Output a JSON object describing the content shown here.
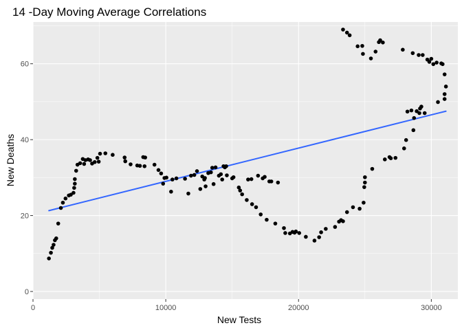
{
  "chart_data": {
    "type": "scatter",
    "title": "14 -Day Moving Average Correlations",
    "xlabel": "New Tests",
    "ylabel": "New Deaths",
    "xlim": [
      0,
      32000
    ],
    "ylim": [
      -2,
      71
    ],
    "x_ticks": [
      0,
      10000,
      20000,
      30000
    ],
    "x_tick_labels": [
      "0",
      "10000",
      "20000",
      "30000"
    ],
    "y_ticks": [
      0,
      20,
      40,
      60
    ],
    "y_tick_labels": [
      "0",
      "20",
      "40",
      "60"
    ],
    "grid": true,
    "colors": {
      "panel_background": "#ebebeb",
      "grid_major": "#ffffff",
      "points": "#000000",
      "trend_line": "#3366ff"
    },
    "trend_line": {
      "method": "lm",
      "start": [
        1200,
        21.3
      ],
      "end": [
        31100,
        47.5
      ]
    },
    "points": [
      [
        1200,
        8.7
      ],
      [
        1350,
        10.2
      ],
      [
        1450,
        11.5
      ],
      [
        1550,
        12.3
      ],
      [
        1650,
        13.5
      ],
      [
        1750,
        14.0
      ],
      [
        1900,
        17.9
      ],
      [
        2100,
        22.0
      ],
      [
        2250,
        23.4
      ],
      [
        2450,
        24.5
      ],
      [
        2700,
        25.3
      ],
      [
        2850,
        25.5
      ],
      [
        3050,
        26.0
      ],
      [
        3100,
        27.3
      ],
      [
        3150,
        28.4
      ],
      [
        3150,
        29.6
      ],
      [
        3250,
        31.8
      ],
      [
        3350,
        33.4
      ],
      [
        3550,
        33.8
      ],
      [
        3750,
        34.9
      ],
      [
        3850,
        33.6
      ],
      [
        3950,
        34.6
      ],
      [
        4150,
        34.8
      ],
      [
        4300,
        34.6
      ],
      [
        4450,
        33.7
      ],
      [
        4650,
        34.1
      ],
      [
        4850,
        35.2
      ],
      [
        4950,
        34.2
      ],
      [
        5050,
        36.3
      ],
      [
        5450,
        36.4
      ],
      [
        6000,
        36.0
      ],
      [
        6900,
        35.3
      ],
      [
        6950,
        34.3
      ],
      [
        7350,
        33.5
      ],
      [
        7850,
        33.2
      ],
      [
        8050,
        33.1
      ],
      [
        8300,
        35.4
      ],
      [
        8400,
        33.0
      ],
      [
        8450,
        35.3
      ],
      [
        9150,
        33.4
      ],
      [
        9450,
        32.0
      ],
      [
        9650,
        31.1
      ],
      [
        9800,
        28.4
      ],
      [
        9900,
        29.9
      ],
      [
        10050,
        30.0
      ],
      [
        10400,
        26.3
      ],
      [
        10500,
        29.5
      ],
      [
        10800,
        29.8
      ],
      [
        11450,
        29.7
      ],
      [
        11700,
        25.8
      ],
      [
        11900,
        30.5
      ],
      [
        12150,
        30.7
      ],
      [
        12350,
        31.7
      ],
      [
        12600,
        27.0
      ],
      [
        12750,
        30.3
      ],
      [
        12900,
        29.5
      ],
      [
        12950,
        29.9
      ],
      [
        13000,
        27.7
      ],
      [
        13200,
        31.2
      ],
      [
        13400,
        31.4
      ],
      [
        13500,
        32.6
      ],
      [
        13600,
        28.3
      ],
      [
        13750,
        32.7
      ],
      [
        14000,
        30.5
      ],
      [
        14150,
        30.9
      ],
      [
        14250,
        29.5
      ],
      [
        14350,
        33.0
      ],
      [
        14450,
        32.7
      ],
      [
        14550,
        33.0
      ],
      [
        14600,
        30.6
      ],
      [
        15000,
        29.8
      ],
      [
        15100,
        30.1
      ],
      [
        15500,
        27.4
      ],
      [
        15600,
        26.6
      ],
      [
        15750,
        25.6
      ],
      [
        16100,
        24.1
      ],
      [
        16200,
        29.5
      ],
      [
        16450,
        29.6
      ],
      [
        16500,
        23.0
      ],
      [
        16800,
        22.2
      ],
      [
        16950,
        30.5
      ],
      [
        17150,
        20.3
      ],
      [
        17300,
        29.8
      ],
      [
        17450,
        30.2
      ],
      [
        17600,
        18.9
      ],
      [
        17800,
        29.0
      ],
      [
        17950,
        29.0
      ],
      [
        18250,
        17.9
      ],
      [
        18450,
        28.7
      ],
      [
        18900,
        16.7
      ],
      [
        19000,
        15.4
      ],
      [
        19350,
        15.3
      ],
      [
        19550,
        15.7
      ],
      [
        19700,
        15.5
      ],
      [
        19800,
        15.8
      ],
      [
        20050,
        15.4
      ],
      [
        20550,
        14.4
      ],
      [
        21200,
        13.4
      ],
      [
        21550,
        14.3
      ],
      [
        21700,
        15.6
      ],
      [
        22050,
        16.5
      ],
      [
        22750,
        17.0
      ],
      [
        23050,
        18.4
      ],
      [
        23200,
        18.8
      ],
      [
        23350,
        18.5
      ],
      [
        23350,
        69.0
      ],
      [
        23650,
        68.2
      ],
      [
        23850,
        67.5
      ],
      [
        23650,
        20.9
      ],
      [
        24100,
        22.2
      ],
      [
        24450,
        64.6
      ],
      [
        24600,
        21.8
      ],
      [
        24800,
        64.7
      ],
      [
        24850,
        62.6
      ],
      [
        24900,
        23.4
      ],
      [
        24950,
        27.5
      ],
      [
        25000,
        28.7
      ],
      [
        25000,
        30.1
      ],
      [
        25450,
        61.4
      ],
      [
        25550,
        32.3
      ],
      [
        25800,
        63.2
      ],
      [
        26050,
        65.7
      ],
      [
        26150,
        66.2
      ],
      [
        26350,
        65.6
      ],
      [
        26500,
        34.8
      ],
      [
        26850,
        35.4
      ],
      [
        26950,
        35.1
      ],
      [
        27300,
        35.2
      ],
      [
        27850,
        63.7
      ],
      [
        27950,
        37.7
      ],
      [
        28100,
        39.9
      ],
      [
        28200,
        47.4
      ],
      [
        28500,
        47.7
      ],
      [
        28600,
        62.8
      ],
      [
        28650,
        42.5
      ],
      [
        28700,
        45.7
      ],
      [
        28900,
        47.5
      ],
      [
        29050,
        62.3
      ],
      [
        29100,
        47.0
      ],
      [
        29150,
        48.2
      ],
      [
        29250,
        48.7
      ],
      [
        29350,
        62.3
      ],
      [
        29500,
        47.0
      ],
      [
        29700,
        61.1
      ],
      [
        29850,
        60.5
      ],
      [
        30000,
        61.3
      ],
      [
        30150,
        59.9
      ],
      [
        30400,
        60.3
      ],
      [
        30500,
        49.9
      ],
      [
        30750,
        60.1
      ],
      [
        30850,
        59.9
      ],
      [
        31000,
        57.2
      ],
      [
        31000,
        50.7
      ],
      [
        31100,
        54.0
      ],
      [
        31000,
        52.0
      ]
    ]
  }
}
